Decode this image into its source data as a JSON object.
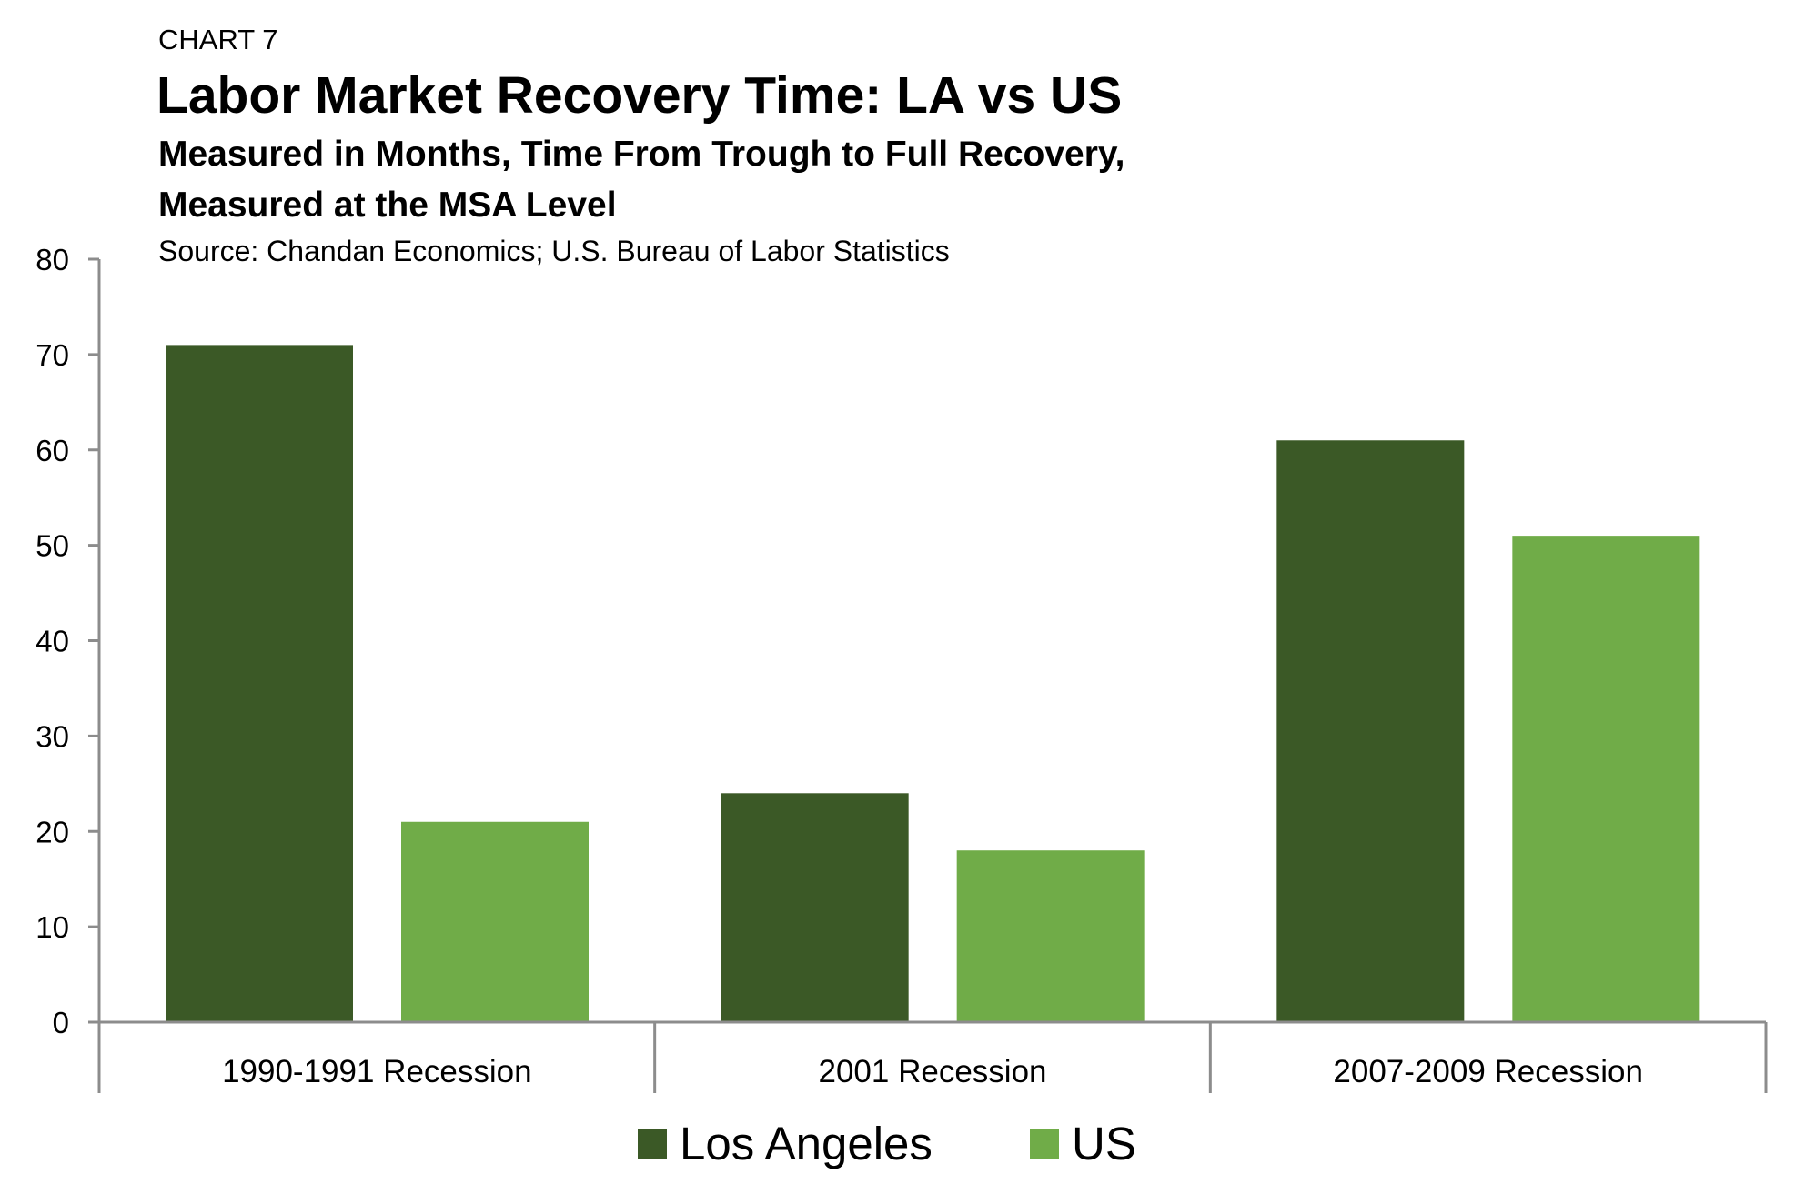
{
  "header": {
    "label": "CHART 7",
    "title": "Labor Market Recovery Time: LA vs US",
    "subtitle_line1": "Measured in Months, Time From Trough to Full Recovery,",
    "subtitle_line2": "Measured at the MSA Level",
    "source": "Source: Chandan Economics; U.S. Bureau of Labor Statistics"
  },
  "chart_data": {
    "type": "bar",
    "title": "Labor Market Recovery Time: LA vs US",
    "categories": [
      "1990-1991 Recession",
      "2001 Recession",
      "2007-2009 Recession"
    ],
    "series": [
      {
        "name": "Los Angeles",
        "values": [
          71,
          24,
          61
        ],
        "color": "#3b5926"
      },
      {
        "name": "US",
        "values": [
          21,
          18,
          51
        ],
        "color": "#70ac48"
      }
    ],
    "ylim": [
      0,
      80
    ],
    "yticks": [
      0,
      10,
      20,
      30,
      40,
      50,
      60,
      70,
      80
    ],
    "grid": false,
    "legend": "bottom",
    "axis_color": "#8c8c8c"
  }
}
